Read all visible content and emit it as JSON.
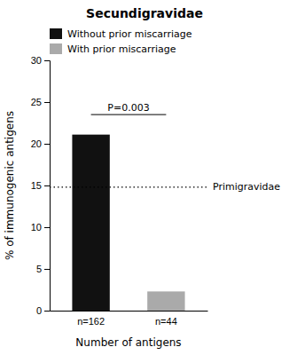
{
  "chart_data": {
    "type": "bar",
    "title": "Secundigravidae",
    "categories": [
      "n=162",
      "n=44"
    ],
    "values": [
      21.1,
      2.3
    ],
    "colors": [
      "#111111",
      "#aaaaaa"
    ],
    "ylim": [
      0,
      30
    ],
    "yticks": [
      0,
      5,
      10,
      15,
      20,
      25,
      30
    ],
    "ylabel": "% of immunogenic antigens",
    "xlabel": "Number of antigens",
    "legend": "upper left",
    "legend_labels": [
      "Without prior miscarriage",
      "With prior miscarriage"
    ],
    "reference_line": {
      "y": 14.8,
      "label": "Primigravidae",
      "line_style": "dotted"
    },
    "significance": {
      "from": "n=162",
      "to": "n=44",
      "y": 23.5,
      "label": "P=0.003"
    }
  }
}
